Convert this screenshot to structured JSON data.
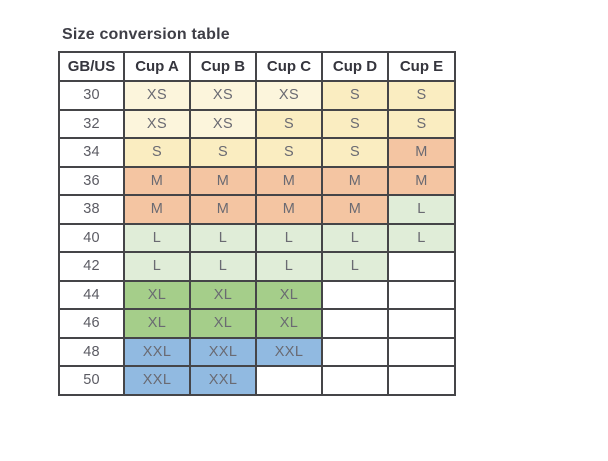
{
  "title": "Size conversion table",
  "chart_data": {
    "type": "table",
    "title": "Size conversion table",
    "columns": [
      "GB/US",
      "Cup A",
      "Cup B",
      "Cup C",
      "Cup D",
      "Cup E"
    ],
    "rows": [
      {
        "band": "30",
        "cells": [
          "XS",
          "XS",
          "XS",
          "S",
          "S"
        ]
      },
      {
        "band": "32",
        "cells": [
          "XS",
          "XS",
          "S",
          "S",
          "S"
        ]
      },
      {
        "band": "34",
        "cells": [
          "S",
          "S",
          "S",
          "S",
          "M"
        ]
      },
      {
        "band": "36",
        "cells": [
          "M",
          "M",
          "M",
          "M",
          "M"
        ]
      },
      {
        "band": "38",
        "cells": [
          "M",
          "M",
          "M",
          "M",
          "L"
        ]
      },
      {
        "band": "40",
        "cells": [
          "L",
          "L",
          "L",
          "L",
          "L"
        ]
      },
      {
        "band": "42",
        "cells": [
          "L",
          "L",
          "L",
          "L",
          ""
        ]
      },
      {
        "band": "44",
        "cells": [
          "XL",
          "XL",
          "XL",
          "",
          ""
        ]
      },
      {
        "band": "46",
        "cells": [
          "XL",
          "XL",
          "XL",
          "",
          ""
        ]
      },
      {
        "band": "48",
        "cells": [
          "XXL",
          "XXL",
          "XXL",
          "",
          ""
        ]
      },
      {
        "band": "50",
        "cells": [
          "XXL",
          "XXL",
          "",
          "",
          ""
        ]
      }
    ],
    "size_colors": {
      "XS": "#FCF5DC",
      "S": "#FAEDC1",
      "M": "#F4C5A2",
      "L": "#E0EDD8",
      "XL": "#A5CE8A",
      "XXL": "#91BAE1",
      "": "#FFFFFF"
    },
    "layout": {
      "border_color": "#454548",
      "grid": "on",
      "header_row": true
    }
  }
}
